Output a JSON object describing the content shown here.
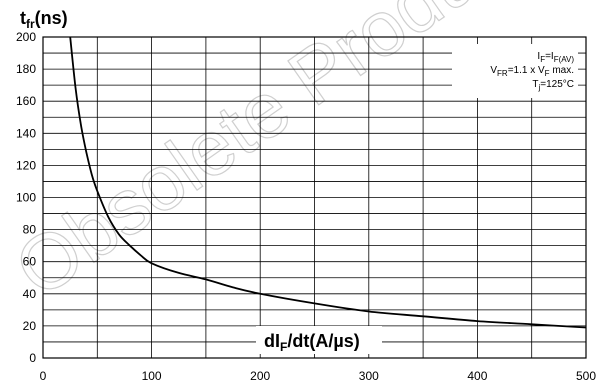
{
  "watermark": "Obsolete Product",
  "chart_data": {
    "type": "line",
    "ylabel_main": "t",
    "ylabel_sub": "fr",
    "ylabel_unit": "(ns)",
    "xlabel_prefix": "dI",
    "xlabel_sub": "F",
    "xlabel_rest": "/dt(A/µs)",
    "xlim": [
      0,
      500
    ],
    "ylim": [
      0,
      200
    ],
    "x_ticks": [
      0,
      100,
      200,
      300,
      400,
      500
    ],
    "y_ticks": [
      0,
      20,
      40,
      60,
      80,
      100,
      120,
      140,
      160,
      180,
      200
    ],
    "grid": true,
    "conditions": [
      {
        "main": "I",
        "sub": "F",
        "mid": "=I",
        "sub2": "F(AV)",
        "tail": ""
      },
      {
        "main": "V",
        "sub": "FR",
        "mid": "=1.1 x V",
        "sub2": "F",
        "tail": " max."
      },
      {
        "main": "T",
        "sub": "j",
        "mid": "=125°C",
        "sub2": "",
        "tail": ""
      }
    ],
    "series": [
      {
        "x": [
          25,
          30,
          35,
          40,
          45,
          50,
          60,
          70,
          80,
          90,
          100,
          125,
          150,
          175,
          200,
          250,
          300,
          350,
          400,
          450,
          500
        ],
        "values": [
          200,
          168,
          145,
          128,
          114,
          104,
          88,
          77,
          70,
          64,
          59,
          53,
          49,
          44,
          40,
          34,
          29,
          26,
          23,
          21,
          19
        ]
      }
    ]
  }
}
